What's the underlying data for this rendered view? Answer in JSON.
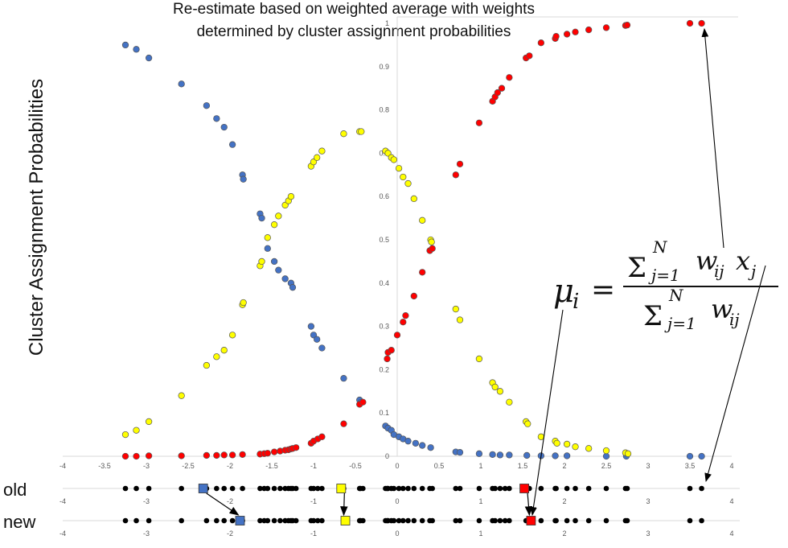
{
  "title": {
    "line1": "Re-estimate based on weighted average with weights",
    "line2": "determined by cluster assignment probabilities"
  },
  "ylabel": "Cluster Assignment Probabilities",
  "rows": {
    "old": "old",
    "new": "new"
  },
  "formula": {
    "lhs": "μ",
    "lhs_sub": "i",
    "eq": "=",
    "numerator": "Σ",
    "num_sup": "N",
    "num_sub": "j=1",
    "num_term": "w",
    "num_term_sub": "ij",
    "num_x": "x",
    "num_x_sub": "j",
    "denominator": "Σ",
    "den_sup": "N",
    "den_sub": "j=1",
    "den_term": "w",
    "den_term_sub": "ij"
  },
  "colors": {
    "blue": "#4472c4",
    "yellow": "#ffff00",
    "red": "#ff0000",
    "black": "#000000",
    "axis": "#d9d9d9",
    "tick": "#595959"
  },
  "chart_data": {
    "type": "scatter",
    "xlim": [
      -4,
      4
    ],
    "ylim": [
      0,
      1
    ],
    "x_ticks": [
      "-4",
      "-3.5",
      "-3",
      "-2.5",
      "-2",
      "-1.5",
      "-1",
      "-0.5",
      "0",
      "0.5",
      "1",
      "1.5",
      "2",
      "2.5",
      "3",
      "3.5",
      "4"
    ],
    "y_ticks": [
      "0",
      "0.1",
      "0.2",
      "0.3",
      "0.4",
      "0.5",
      "0.6",
      "0.7",
      "0.8",
      "0.9",
      "1"
    ],
    "data_points_x": [
      -3.25,
      -3.12,
      -2.97,
      -2.58,
      -2.28,
      -2.16,
      -2.07,
      -1.97,
      -1.85,
      -1.64,
      -1.59,
      -1.55,
      -1.47,
      -1.4,
      -1.34,
      -1.3,
      -1.27,
      -1.25,
      -1.21,
      -1.03,
      -1.0,
      -0.95,
      -0.9,
      -0.64,
      -0.45,
      -0.44,
      -0.41,
      -0.14,
      -0.12,
      -0.11,
      -0.07,
      -0.04,
      0.02,
      0.07,
      0.13,
      0.2,
      0.3,
      0.39,
      0.42,
      0.7,
      0.75,
      0.98,
      1.14,
      1.17,
      1.23,
      1.29,
      1.34,
      1.54,
      1.58,
      1.72,
      1.89,
      1.9,
      2.03,
      2.13,
      2.29,
      2.5,
      2.73,
      2.75,
      3.5,
      3.64
    ],
    "series": [
      {
        "name": "",
        "color": "blue",
        "points": [
          [
            -3.25,
            0.95
          ],
          [
            -3.12,
            0.94
          ],
          [
            -2.97,
            0.92
          ],
          [
            -2.58,
            0.86
          ],
          [
            -2.28,
            0.81
          ],
          [
            -2.16,
            0.78
          ],
          [
            -2.07,
            0.76
          ],
          [
            -1.97,
            0.72
          ],
          [
            -1.85,
            0.65
          ],
          [
            -1.84,
            0.64
          ],
          [
            -1.64,
            0.56
          ],
          [
            -1.62,
            0.55
          ],
          [
            -1.55,
            0.48
          ],
          [
            -1.47,
            0.45
          ],
          [
            -1.42,
            0.43
          ],
          [
            -1.34,
            0.41
          ],
          [
            -1.27,
            0.4
          ],
          [
            -1.25,
            0.39
          ],
          [
            -1.03,
            0.3
          ],
          [
            -1.0,
            0.28
          ],
          [
            -0.96,
            0.27
          ],
          [
            -0.9,
            0.25
          ],
          [
            -0.64,
            0.18
          ],
          [
            -0.45,
            0.13
          ],
          [
            -0.43,
            0.125
          ],
          [
            -0.14,
            0.07
          ],
          [
            -0.11,
            0.065
          ],
          [
            -0.07,
            0.06
          ],
          [
            -0.04,
            0.05
          ],
          [
            0.02,
            0.045
          ],
          [
            0.07,
            0.04
          ],
          [
            0.13,
            0.035
          ],
          [
            0.22,
            0.03
          ],
          [
            0.3,
            0.025
          ],
          [
            0.4,
            0.02
          ],
          [
            0.7,
            0.01
          ],
          [
            0.75,
            0.009
          ],
          [
            0.98,
            0.006
          ],
          [
            1.14,
            0.004
          ],
          [
            1.23,
            0.003
          ],
          [
            1.34,
            0.003
          ],
          [
            1.55,
            0.002
          ],
          [
            1.72,
            0.001
          ],
          [
            1.89,
            0.001
          ],
          [
            2.03,
            0.001
          ],
          [
            2.5,
            0.0
          ],
          [
            2.74,
            0.0
          ],
          [
            3.5,
            0.0
          ],
          [
            3.64,
            0.0
          ]
        ]
      },
      {
        "name": "",
        "color": "yellow",
        "points": [
          [
            -3.25,
            0.05
          ],
          [
            -3.12,
            0.06
          ],
          [
            -2.97,
            0.08
          ],
          [
            -2.58,
            0.14
          ],
          [
            -2.28,
            0.21
          ],
          [
            -2.16,
            0.23
          ],
          [
            -2.07,
            0.245
          ],
          [
            -1.97,
            0.28
          ],
          [
            -1.85,
            0.35
          ],
          [
            -1.84,
            0.355
          ],
          [
            -1.64,
            0.44
          ],
          [
            -1.62,
            0.45
          ],
          [
            -1.55,
            0.505
          ],
          [
            -1.47,
            0.535
          ],
          [
            -1.42,
            0.555
          ],
          [
            -1.34,
            0.58
          ],
          [
            -1.3,
            0.59
          ],
          [
            -1.27,
            0.6
          ],
          [
            -1.03,
            0.67
          ],
          [
            -1.0,
            0.68
          ],
          [
            -0.96,
            0.69
          ],
          [
            -0.9,
            0.705
          ],
          [
            -0.64,
            0.745
          ],
          [
            -0.45,
            0.75
          ],
          [
            -0.43,
            0.75
          ],
          [
            -0.14,
            0.705
          ],
          [
            -0.11,
            0.7
          ],
          [
            -0.07,
            0.69
          ],
          [
            -0.04,
            0.685
          ],
          [
            0.02,
            0.665
          ],
          [
            0.07,
            0.645
          ],
          [
            0.13,
            0.63
          ],
          [
            0.2,
            0.595
          ],
          [
            0.3,
            0.545
          ],
          [
            0.4,
            0.5
          ],
          [
            0.41,
            0.495
          ],
          [
            0.7,
            0.34
          ],
          [
            0.75,
            0.315
          ],
          [
            0.98,
            0.225
          ],
          [
            1.14,
            0.17
          ],
          [
            1.17,
            0.16
          ],
          [
            1.23,
            0.15
          ],
          [
            1.34,
            0.125
          ],
          [
            1.54,
            0.08
          ],
          [
            1.56,
            0.075
          ],
          [
            1.72,
            0.045
          ],
          [
            1.89,
            0.035
          ],
          [
            1.91,
            0.03
          ],
          [
            2.03,
            0.028
          ],
          [
            2.13,
            0.022
          ],
          [
            2.29,
            0.018
          ],
          [
            2.5,
            0.013
          ],
          [
            2.73,
            0.008
          ],
          [
            2.76,
            0.006
          ]
        ]
      },
      {
        "name": "",
        "color": "red",
        "points": [
          [
            -3.25,
            0.0
          ],
          [
            -3.12,
            0.0
          ],
          [
            -2.97,
            0.001
          ],
          [
            -2.58,
            0.001
          ],
          [
            -2.28,
            0.002
          ],
          [
            -2.16,
            0.002
          ],
          [
            -2.07,
            0.003
          ],
          [
            -1.97,
            0.003
          ],
          [
            -1.85,
            0.004
          ],
          [
            -1.64,
            0.005
          ],
          [
            -1.59,
            0.006
          ],
          [
            -1.55,
            0.007
          ],
          [
            -1.47,
            0.01
          ],
          [
            -1.4,
            0.012
          ],
          [
            -1.34,
            0.014
          ],
          [
            -1.3,
            0.015
          ],
          [
            -1.27,
            0.017
          ],
          [
            -1.25,
            0.018
          ],
          [
            -1.21,
            0.02
          ],
          [
            -1.03,
            0.03
          ],
          [
            -1.0,
            0.035
          ],
          [
            -0.95,
            0.04
          ],
          [
            -0.9,
            0.045
          ],
          [
            -0.64,
            0.075
          ],
          [
            -0.45,
            0.12
          ],
          [
            -0.41,
            0.125
          ],
          [
            -0.12,
            0.225
          ],
          [
            -0.11,
            0.24
          ],
          [
            -0.07,
            0.245
          ],
          [
            0.0,
            0.28
          ],
          [
            0.07,
            0.31
          ],
          [
            0.1,
            0.325
          ],
          [
            0.2,
            0.37
          ],
          [
            0.3,
            0.425
          ],
          [
            0.39,
            0.475
          ],
          [
            0.42,
            0.48
          ],
          [
            0.7,
            0.65
          ],
          [
            0.75,
            0.675
          ],
          [
            0.98,
            0.77
          ],
          [
            1.14,
            0.82
          ],
          [
            1.17,
            0.83
          ],
          [
            1.2,
            0.84
          ],
          [
            1.25,
            0.85
          ],
          [
            1.34,
            0.875
          ],
          [
            1.54,
            0.92
          ],
          [
            1.58,
            0.925
          ],
          [
            1.72,
            0.955
          ],
          [
            1.89,
            0.965
          ],
          [
            1.9,
            0.97
          ],
          [
            2.03,
            0.975
          ],
          [
            2.13,
            0.98
          ],
          [
            2.29,
            0.985
          ],
          [
            2.5,
            0.99
          ],
          [
            2.73,
            0.995
          ],
          [
            2.75,
            0.996
          ],
          [
            3.5,
            1.0
          ],
          [
            3.64,
            1.0
          ]
        ]
      }
    ],
    "means": {
      "old": [
        {
          "color": "blue",
          "x": -2.32
        },
        {
          "color": "yellow",
          "x": -0.67
        },
        {
          "color": "red",
          "x": 1.52
        }
      ],
      "new": [
        {
          "color": "blue",
          "x": -1.88
        },
        {
          "color": "yellow",
          "x": -0.62
        },
        {
          "color": "red",
          "x": 1.6
        }
      ]
    }
  }
}
